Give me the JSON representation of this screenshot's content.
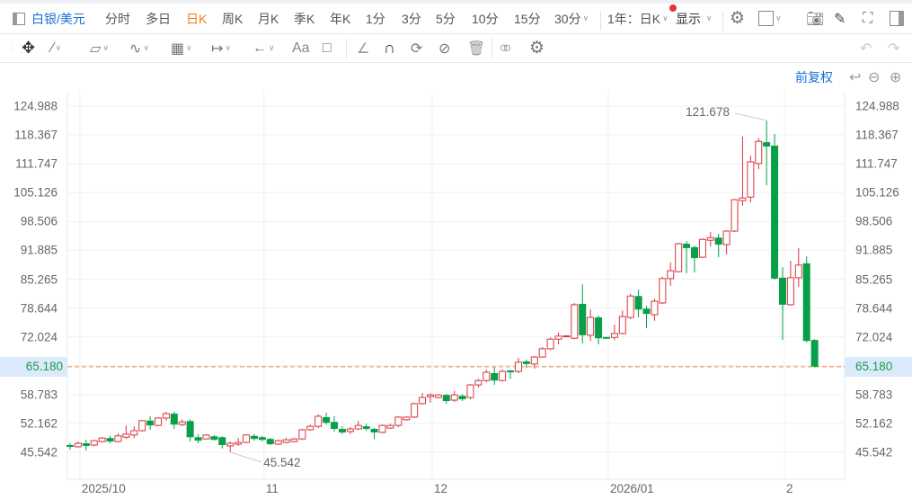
{
  "toolbar": {
    "symbol": "白银/美元",
    "periods": [
      "分时",
      "多日",
      "日K",
      "周K",
      "月K",
      "季K",
      "年K",
      "1分",
      "3分",
      "5分",
      "10分",
      "15分",
      "30分"
    ],
    "active_period": "日K",
    "range_select": "1年：日K",
    "display_select": "显示",
    "icons": [
      "panel-left-icon",
      "gear-icon",
      "square-icon",
      "camera-icon",
      "pencil-icon",
      "fullscreen-icon",
      "panel-right-icon"
    ]
  },
  "drawing_tools": {
    "text_tool_label": "Aa",
    "icons": [
      "grip-icon",
      "move-icon",
      "line-icon",
      "polygon-icon",
      "wave-icon",
      "fibonacci-icon",
      "measure-icon",
      "arrow-icon",
      "text-icon",
      "comment-icon",
      "angle-icon",
      "magnet-icon",
      "loop-icon",
      "eye-off-icon",
      "trash-icon",
      "compare-icon",
      "gear-icon",
      "undo-icon",
      "redo-icon"
    ]
  },
  "chart_header": {
    "adjust_label": "前复权"
  },
  "colors": {
    "up": "#d9363e",
    "down": "#05a048",
    "current_line": "#f0883e",
    "accent": "#1a6fd6",
    "active_period": "#f07c1a"
  },
  "chart_data": {
    "type": "candlestick",
    "y_ticks": [
      "124.988",
      "118.367",
      "111.747",
      "105.126",
      "98.506",
      "91.885",
      "85.265",
      "78.644",
      "72.024",
      "58.783",
      "52.162",
      "45.542"
    ],
    "current_price": "65.180",
    "max_label": "121.678",
    "min_label": "45.542",
    "x_labels": [
      {
        "label": "2025/10",
        "index": 1
      },
      {
        "label": "11",
        "index": 24
      },
      {
        "label": "12",
        "index": 45
      },
      {
        "label": "2026/01",
        "index": 67
      },
      {
        "label": "2",
        "index": 89
      }
    ],
    "grid": true,
    "ohlc": [
      [
        47.2,
        47.6,
        46.1,
        46.8
      ],
      [
        46.8,
        48.0,
        46.6,
        47.6
      ],
      [
        47.6,
        48.4,
        45.9,
        47.0
      ],
      [
        47.2,
        48.4,
        46.9,
        48.2
      ],
      [
        48.0,
        49.0,
        47.8,
        48.8
      ],
      [
        48.8,
        49.3,
        47.6,
        48.0
      ],
      [
        48.0,
        49.9,
        47.8,
        49.3
      ],
      [
        49.0,
        51.7,
        48.6,
        49.7
      ],
      [
        49.5,
        51.5,
        48.8,
        50.5
      ],
      [
        50.5,
        52.9,
        50.3,
        52.8
      ],
      [
        52.8,
        53.8,
        50.7,
        51.7
      ],
      [
        51.7,
        53.6,
        51.5,
        53.4
      ],
      [
        53.4,
        54.8,
        52.8,
        54.4
      ],
      [
        54.4,
        54.8,
        50.9,
        51.9
      ],
      [
        51.9,
        53.1,
        51.5,
        52.5
      ],
      [
        52.7,
        53.1,
        48.0,
        49.0
      ],
      [
        49.0,
        49.7,
        47.6,
        48.2
      ],
      [
        48.6,
        49.7,
        48.4,
        49.5
      ],
      [
        49.2,
        49.5,
        48.2,
        48.4
      ],
      [
        49.0,
        49.2,
        46.4,
        47.2
      ],
      [
        47.0,
        48.0,
        45.542,
        47.6
      ],
      [
        47.4,
        48.8,
        47.0,
        47.8
      ],
      [
        47.8,
        49.7,
        47.6,
        49.5
      ],
      [
        49.3,
        49.7,
        48.2,
        48.6
      ],
      [
        49.0,
        49.3,
        48.0,
        48.4
      ],
      [
        48.6,
        48.8,
        47.2,
        47.4
      ],
      [
        47.4,
        48.4,
        47.2,
        48.2
      ],
      [
        47.8,
        48.8,
        47.6,
        48.4
      ],
      [
        48.0,
        48.8,
        47.8,
        48.6
      ],
      [
        48.6,
        50.9,
        48.4,
        50.7
      ],
      [
        50.7,
        51.9,
        50.5,
        51.5
      ],
      [
        51.5,
        54.2,
        51.1,
        53.8
      ],
      [
        53.6,
        54.6,
        51.9,
        52.3
      ],
      [
        52.5,
        53.8,
        50.3,
        50.9
      ],
      [
        50.9,
        51.5,
        49.7,
        50.1
      ],
      [
        50.3,
        51.3,
        49.7,
        50.9
      ],
      [
        50.9,
        52.7,
        50.7,
        51.7
      ],
      [
        51.5,
        52.1,
        50.5,
        50.9
      ],
      [
        50.9,
        51.1,
        48.6,
        50.1
      ],
      [
        50.1,
        51.9,
        49.9,
        51.7
      ],
      [
        51.1,
        52.1,
        50.9,
        51.7
      ],
      [
        51.7,
        53.8,
        51.3,
        53.6
      ],
      [
        53.0,
        53.8,
        52.8,
        53.6
      ],
      [
        53.6,
        56.9,
        53.4,
        56.7
      ],
      [
        56.7,
        59.1,
        56.5,
        58.1
      ],
      [
        58.3,
        59.1,
        56.9,
        58.7
      ],
      [
        58.1,
        58.9,
        57.9,
        58.7
      ],
      [
        58.7,
        58.9,
        56.7,
        57.3
      ],
      [
        57.5,
        59.6,
        57.1,
        58.7
      ],
      [
        58.5,
        58.9,
        57.3,
        57.7
      ],
      [
        58.1,
        61.2,
        57.7,
        61.0
      ],
      [
        61.0,
        62.4,
        60.4,
        62.0
      ],
      [
        62.0,
        64.5,
        61.6,
        63.9
      ],
      [
        63.7,
        65.1,
        61.0,
        62.0
      ],
      [
        62.0,
        64.5,
        61.8,
        64.1
      ],
      [
        64.3,
        64.5,
        62.4,
        63.9
      ],
      [
        64.1,
        67.2,
        63.7,
        66.2
      ],
      [
        66.4,
        66.8,
        64.9,
        65.8
      ],
      [
        65.8,
        67.6,
        64.7,
        67.4
      ],
      [
        67.4,
        69.7,
        67.2,
        69.3
      ],
      [
        69.3,
        71.9,
        69.0,
        71.5
      ],
      [
        71.5,
        73.0,
        70.3,
        72.2
      ],
      [
        72.2,
        72.4,
        72.0,
        72.25
      ],
      [
        71.7,
        79.8,
        71.5,
        79.4
      ],
      [
        79.6,
        84.1,
        70.5,
        72.4
      ],
      [
        72.4,
        78.3,
        71.1,
        76.5
      ],
      [
        76.5,
        76.9,
        70.3,
        71.7
      ],
      [
        72.0,
        72.0,
        71.9,
        71.9
      ],
      [
        71.9,
        74.8,
        71.3,
        72.8
      ],
      [
        72.8,
        78.1,
        72.6,
        76.7
      ],
      [
        76.5,
        81.9,
        76.1,
        81.4
      ],
      [
        81.4,
        82.9,
        76.5,
        78.3
      ],
      [
        78.5,
        79.2,
        74.0,
        77.3
      ],
      [
        77.1,
        80.8,
        75.7,
        80.2
      ],
      [
        79.8,
        85.8,
        79.6,
        85.4
      ],
      [
        85.4,
        89.1,
        83.7,
        87.2
      ],
      [
        87.0,
        93.6,
        86.8,
        93.4
      ],
      [
        93.4,
        94.0,
        86.6,
        92.4
      ],
      [
        92.6,
        93.0,
        86.8,
        90.1
      ],
      [
        90.3,
        94.6,
        90.1,
        94.4
      ],
      [
        94.2,
        96.1,
        92.8,
        94.8
      ],
      [
        94.8,
        95.7,
        90.3,
        93.2
      ],
      [
        93.2,
        96.5,
        90.9,
        96.3
      ],
      [
        96.3,
        103.7,
        96.1,
        103.5
      ],
      [
        103.3,
        118.0,
        102.1,
        103.9
      ],
      [
        104.1,
        113.6,
        102.9,
        112.2
      ],
      [
        111.8,
        117.6,
        110.5,
        116.9
      ],
      [
        116.7,
        121.678,
        106.8,
        115.7
      ],
      [
        115.9,
        118.6,
        85.2,
        85.4
      ],
      [
        85.6,
        88.0,
        71.3,
        79.4
      ],
      [
        79.4,
        89.5,
        79.2,
        85.6
      ],
      [
        85.6,
        92.4,
        83.5,
        88.5
      ],
      [
        88.9,
        90.5,
        70.7,
        71.1
      ],
      [
        71.3,
        71.5,
        65.0,
        65.18
      ]
    ]
  }
}
